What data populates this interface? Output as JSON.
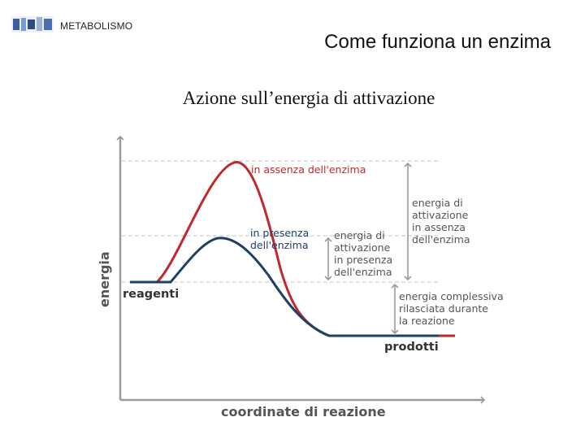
{
  "header": {
    "section_label": "METABOLISMO",
    "title": "Come funziona un enzima"
  },
  "subtitle": "Azione sull’energia di attivazione",
  "diagram": {
    "y_axis_label": "energia",
    "x_axis_label": "coordinate di reazione",
    "reagents_label": "reagenti",
    "products_label": "prodotti",
    "curve_without_enzyme_label": "in assenza dell'enzima",
    "curve_with_enzyme_label": [
      "in presenza",
      "dell'enzima"
    ],
    "activation_with_enzyme_label": [
      "energia di",
      "attivazione",
      "in presenza",
      "dell'enzima"
    ],
    "activation_without_enzyme_label": [
      "energia di",
      "attivazione",
      "in assenza",
      "dell'enzima"
    ],
    "total_energy_label": [
      "energia complessiva",
      "rilasciata durante",
      "la reazione"
    ],
    "colors": {
      "without_enzyme": "#c0282c",
      "with_enzyme": "#1e3f66",
      "axis": "#9a9a9a"
    }
  }
}
